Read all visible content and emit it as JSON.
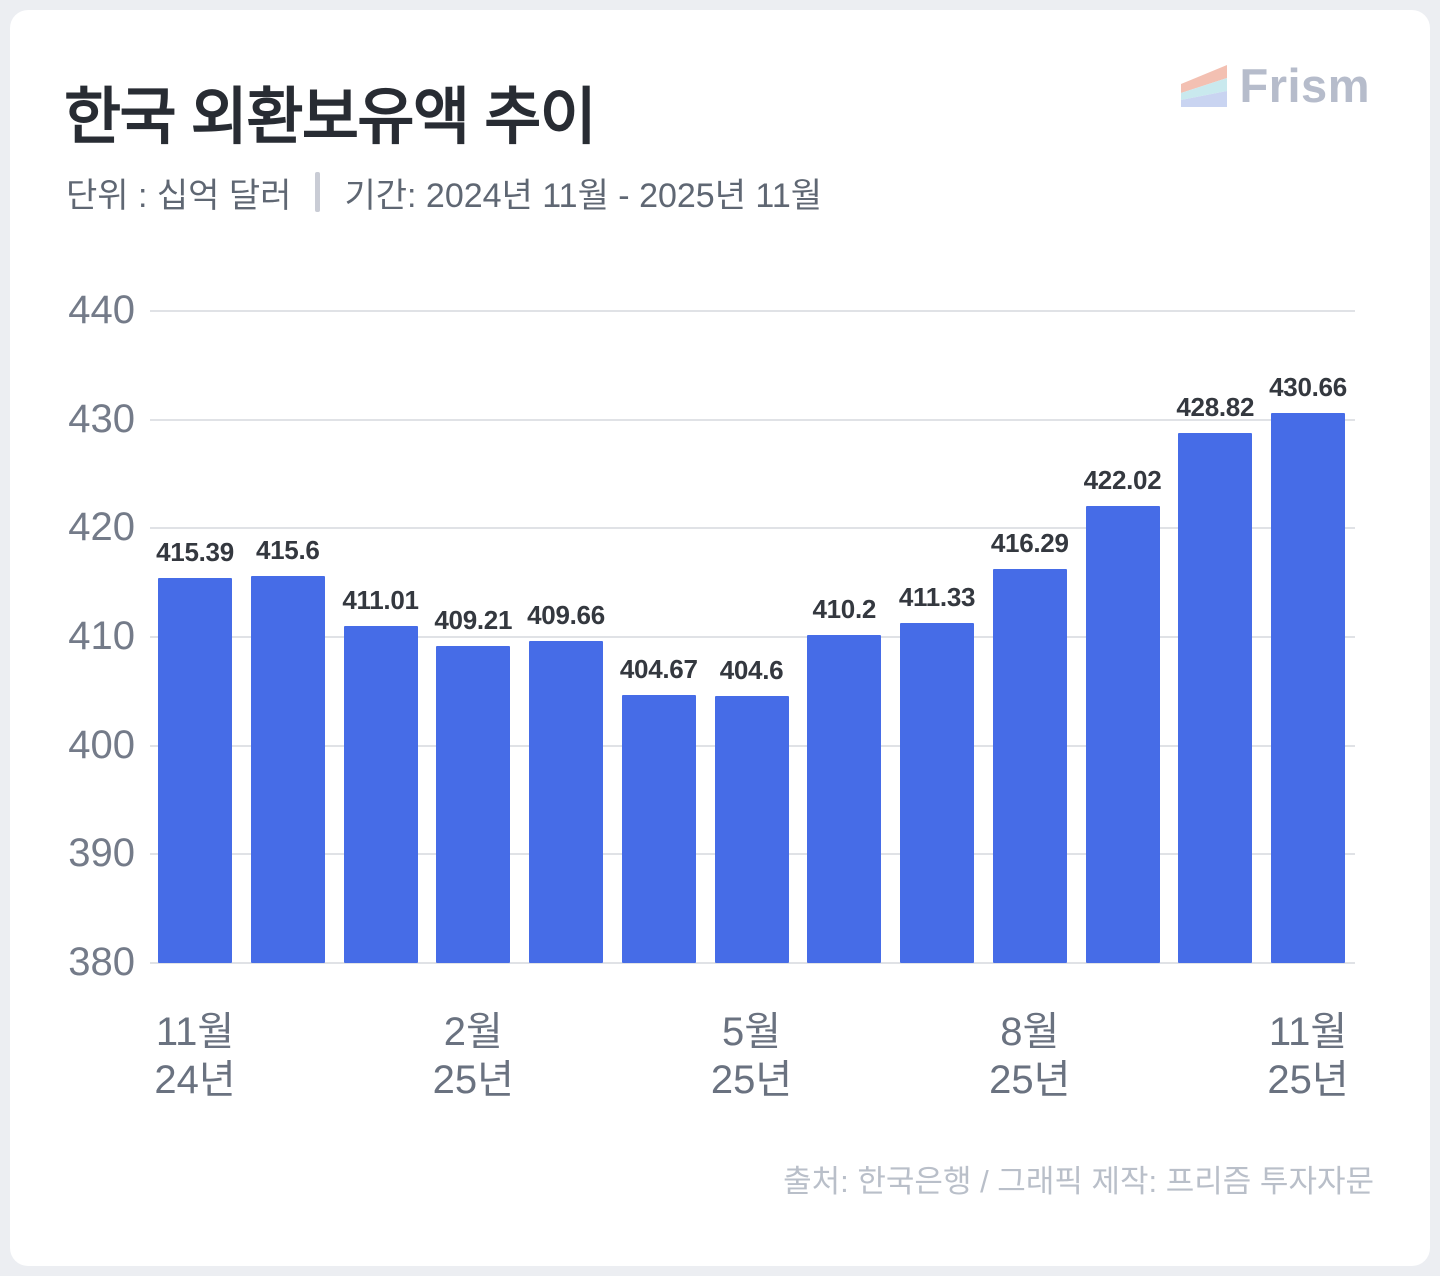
{
  "header": {
    "title": "한국 외환보유액 추이",
    "unit_label": "단위 : 십억 달러",
    "period_label": "기간: 2024년 11월 - 2025년 11월"
  },
  "brand": {
    "name": "Frism",
    "icon": "prism-logo-icon",
    "icon_colors": [
      "#f3c0b2",
      "#c9e9ee",
      "#c9d4f1"
    ],
    "text_color": "#b6bccb"
  },
  "chart_data": {
    "type": "bar",
    "title": "한국 외환보유액 추이",
    "unit": "십억 달러",
    "period": "2024년 11월 - 2025년 11월",
    "ylim": [
      380,
      440
    ],
    "y_ticks": [
      440,
      430,
      420,
      410,
      400,
      390,
      380
    ],
    "grid": true,
    "legend": "none",
    "bar_color": "#466CE7",
    "values": [
      415.39,
      415.6,
      411.01,
      409.21,
      409.66,
      404.67,
      404.6,
      410.2,
      411.33,
      416.29,
      422.02,
      428.82,
      430.66
    ],
    "value_labels": [
      "415.39",
      "415.6",
      "411.01",
      "409.21",
      "409.66",
      "404.67",
      "404.6",
      "410.2",
      "411.33",
      "416.29",
      "422.02",
      "428.82",
      "430.66"
    ],
    "x_ticks": [
      {
        "index": 0,
        "month": "11월",
        "year": "24년"
      },
      {
        "index": 3,
        "month": "2월",
        "year": "25년"
      },
      {
        "index": 6,
        "month": "5월",
        "year": "25년"
      },
      {
        "index": 9,
        "month": "8월",
        "year": "25년"
      },
      {
        "index": 12,
        "month": "11월",
        "year": "25년"
      }
    ]
  },
  "footer": {
    "source": "출처: 한국은행 / 그래픽 제작: 프리즘 투자자문"
  }
}
